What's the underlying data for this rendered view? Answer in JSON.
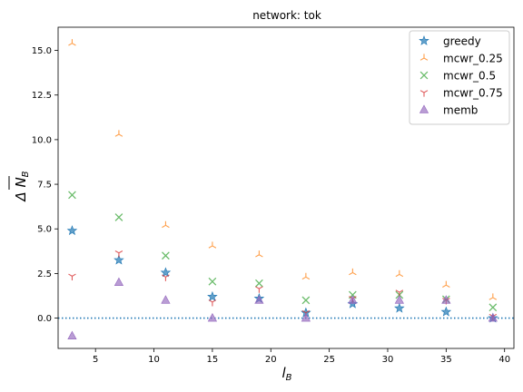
{
  "chart_data": {
    "type": "scatter",
    "title": "network: tok",
    "xlabel": "l",
    "xlabel_sub": "B",
    "ylabel": "Δ N",
    "ylabel_sub": "B",
    "xlim": [
      1.8,
      40.8
    ],
    "ylim": [
      -1.7,
      16.3
    ],
    "x_ticks": [
      5,
      10,
      15,
      20,
      25,
      30,
      35,
      40
    ],
    "y_ticks": [
      0.0,
      2.5,
      5.0,
      7.5,
      10.0,
      12.5,
      15.0
    ],
    "x_tick_labels": [
      "5",
      "10",
      "15",
      "20",
      "25",
      "30",
      "35",
      "40"
    ],
    "y_tick_labels": [
      "0.0",
      "2.5",
      "5.0",
      "7.5",
      "10.0",
      "12.5",
      "15.0"
    ],
    "reference_line": {
      "y": 0,
      "style": "dotted",
      "color": "#1f77b4"
    },
    "legend_position": "top-right",
    "x": [
      3,
      7,
      11,
      15,
      19,
      23,
      27,
      31,
      35,
      39
    ],
    "series": [
      {
        "name": "greedy",
        "marker": "star",
        "color": "#1f77b4",
        "y": [
          4.9,
          3.25,
          2.55,
          1.2,
          1.1,
          0.3,
          0.8,
          0.55,
          0.35,
          0.0
        ]
      },
      {
        "name": "mcwr_0.25",
        "marker": "tri-up",
        "color": "#ff7f0e",
        "y": [
          15.4,
          10.3,
          5.2,
          4.05,
          3.55,
          2.3,
          2.55,
          2.45,
          1.85,
          1.15
        ]
      },
      {
        "name": "mcwr_0.5",
        "marker": "x",
        "color": "#2ca02c",
        "y": [
          6.9,
          5.65,
          3.5,
          2.05,
          1.95,
          1.0,
          1.3,
          1.3,
          1.05,
          0.6
        ]
      },
      {
        "name": "mcwr_0.75",
        "marker": "tri-down",
        "color": "#d62728",
        "y": [
          2.35,
          3.65,
          2.3,
          0.9,
          1.65,
          0.3,
          1.1,
          1.45,
          1.0,
          0.1
        ]
      },
      {
        "name": "memb",
        "marker": "triangle",
        "color": "#9467bd",
        "y": [
          -1.0,
          2.0,
          1.0,
          0.0,
          1.0,
          0.0,
          1.0,
          1.0,
          1.0,
          0.0
        ]
      }
    ]
  }
}
